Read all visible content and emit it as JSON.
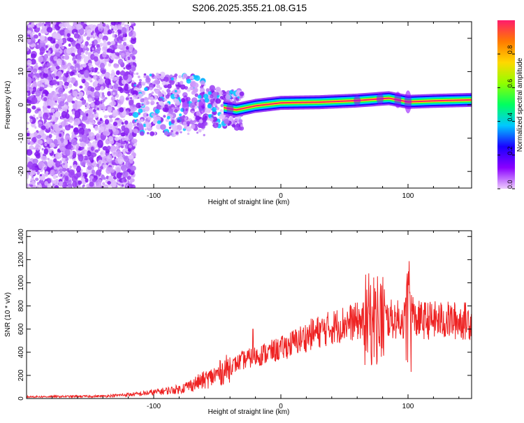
{
  "title": "S206.2025.355.21.08.G15",
  "chart_data": [
    {
      "type": "heatmap",
      "name": "spectrogram",
      "xlabel": "Height of straight line (km)",
      "ylabel": "Frequency (Hz)",
      "xlim": [
        -200,
        150
      ],
      "ylim": [
        -25,
        25
      ],
      "xticks": [
        -100,
        0,
        100
      ],
      "xtick_labels": [
        "-100",
        "0",
        "100"
      ],
      "yticks": [
        -20,
        -10,
        0,
        10,
        20
      ],
      "ytick_labels": [
        "-20",
        "-10",
        "0",
        "10",
        "20"
      ],
      "colorbar": {
        "label": "Normalized spectral amplitude",
        "range": [
          0,
          1
        ],
        "ticks": [
          0,
          0.2,
          0.4,
          0.6,
          0.8
        ],
        "tick_labels": [
          "0.0",
          "0.2",
          "0.4",
          "0.6",
          "0.8"
        ],
        "colormap": [
          "#eecdfe",
          "#8a00ff",
          "#1a00ff",
          "#00c8ff",
          "#00ff60",
          "#90ff00",
          "#ffd800",
          "#ff7a00",
          "#ff1c6c"
        ]
      },
      "ridge": [
        {
          "x": -120,
          "f": 0.5
        },
        {
          "x": -80,
          "f": 0.0
        },
        {
          "x": -50,
          "f": -0.5
        },
        {
          "x": -35,
          "f": -1.5
        },
        {
          "x": -20,
          "f": -0.3
        },
        {
          "x": 0,
          "f": 0.6
        },
        {
          "x": 30,
          "f": 0.8
        },
        {
          "x": 60,
          "f": 1.3
        },
        {
          "x": 85,
          "f": 2.0
        },
        {
          "x": 100,
          "f": 0.9
        },
        {
          "x": 120,
          "f": 1.2
        },
        {
          "x": 150,
          "f": 1.5
        }
      ]
    },
    {
      "type": "line",
      "name": "snr",
      "xlabel": "Height of straight line (km)",
      "ylabel": "SNR (10 * v/v)",
      "xlim": [
        -200,
        150
      ],
      "ylim": [
        0,
        1450
      ],
      "xticks": [
        -100,
        0,
        100
      ],
      "xtick_labels": [
        "-100",
        "0",
        "100"
      ],
      "yticks": [
        0,
        200,
        400,
        600,
        800,
        1000,
        1200,
        1400
      ],
      "ytick_labels": [
        "0",
        "200",
        "400",
        "600",
        "800",
        "1000",
        "1200",
        "1400"
      ],
      "color": "#ee2222",
      "trend": [
        {
          "x": -200,
          "y": 15
        },
        {
          "x": -140,
          "y": 20
        },
        {
          "x": -110,
          "y": 40
        },
        {
          "x": -80,
          "y": 80
        },
        {
          "x": -55,
          "y": 180
        },
        {
          "x": -30,
          "y": 330
        },
        {
          "x": 0,
          "y": 430
        },
        {
          "x": 25,
          "y": 560
        },
        {
          "x": 50,
          "y": 650
        },
        {
          "x": 75,
          "y": 690
        },
        {
          "x": 100,
          "y": 680
        },
        {
          "x": 150,
          "y": 670
        }
      ],
      "peaks": [
        {
          "x": -22,
          "y": 600
        },
        {
          "x": 78,
          "y": 1460
        },
        {
          "x": 73,
          "y": 1050
        },
        {
          "x": 102,
          "y": 1280
        },
        {
          "x": 79,
          "y": 80
        },
        {
          "x": 103,
          "y": 50
        }
      ]
    }
  ]
}
